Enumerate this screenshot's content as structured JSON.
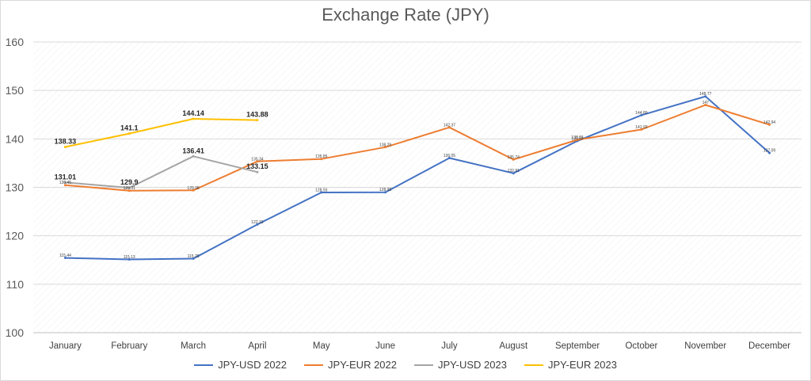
{
  "chart_data": {
    "type": "line",
    "title": "Exchange Rate (JPY)",
    "xlabel": "",
    "ylabel": "",
    "ylim": [
      100,
      160
    ],
    "yticks": [
      100,
      110,
      120,
      130,
      140,
      150,
      160
    ],
    "categories": [
      "January",
      "February",
      "March",
      "April",
      "May",
      "June",
      "July",
      "August",
      "September",
      "October",
      "November",
      "December"
    ],
    "grid": true,
    "legend_position": "bottom",
    "series": [
      {
        "name": "JPY-USD 2022",
        "color": "#4472c4",
        "values": [
          115.44,
          115.13,
          115.28,
          122.33,
          128.93,
          128.98,
          136.05,
          132.91,
          139.58,
          144.89,
          148.77,
          137.09
        ],
        "labels": [
          "115.44",
          "115.13",
          "115.28",
          "122.33",
          "128.93",
          "128.98",
          "136.05",
          "132.91",
          "139.58",
          "144.89",
          "148.77",
          "137.09"
        ],
        "label_style": "small"
      },
      {
        "name": "JPY-EUR 2022",
        "color": "#ed7d31",
        "values": [
          130.45,
          129.31,
          129.38,
          135.34,
          135.85,
          138.29,
          142.37,
          135.74,
          139.81,
          141.93,
          147.0,
          142.94
        ],
        "labels": [
          "130.45",
          "129.31",
          "129.38",
          "135.34",
          "135.85",
          "138.29",
          "142.37",
          "135.74",
          "139.81",
          "141.93",
          "147",
          "142.94"
        ],
        "label_style": "small"
      },
      {
        "name": "JPY-USD 2023",
        "color": "#a5a5a5",
        "values": [
          131.01,
          129.9,
          136.41,
          133.15,
          null,
          null,
          null,
          null,
          null,
          null,
          null,
          null
        ],
        "labels": [
          "131.01",
          "129.9",
          "136.41",
          "133.15"
        ],
        "label_style": "bold"
      },
      {
        "name": "JPY-EUR 2023",
        "color": "#ffc000",
        "values": [
          138.33,
          141.1,
          144.14,
          143.88,
          null,
          null,
          null,
          null,
          null,
          null,
          null,
          null
        ],
        "labels": [
          "138.33",
          "141.1",
          "144.14",
          "143.88"
        ],
        "label_style": "bold"
      }
    ]
  }
}
